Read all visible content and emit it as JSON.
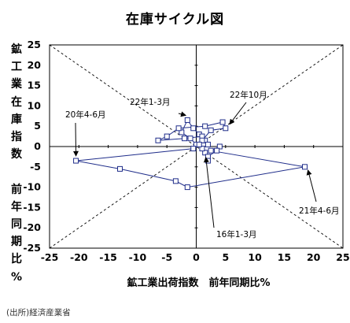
{
  "chart_data": {
    "type": "scatter",
    "title": "在庫サイクル図",
    "xlabel": "鉱工業出荷指数　前年同期比%",
    "ylabel": [
      "鉱",
      "工",
      "業",
      "在",
      "庫",
      "指",
      "数",
      "",
      "前",
      "年",
      "同",
      "期",
      "比",
      "%"
    ],
    "xlim": [
      -25,
      25
    ],
    "ylim": [
      -25,
      25
    ],
    "x_ticks": [
      "-25",
      "-20",
      "-15",
      "-10",
      "-5",
      "0",
      "5",
      "10",
      "15",
      "20",
      "25"
    ],
    "y_ticks": [
      "25",
      "20",
      "15",
      "10",
      "5",
      "0",
      "-5",
      "-10",
      "-15",
      "-20",
      "-25"
    ],
    "grid": false,
    "diagonals": true,
    "connected": true,
    "series_color": "#1f2d8a",
    "points": [
      {
        "x": 1.5,
        "y": -1.5
      },
      {
        "x": 1.0,
        "y": -0.5
      },
      {
        "x": 0.0,
        "y": 0.5
      },
      {
        "x": -1.0,
        "y": 2.0
      },
      {
        "x": -2.5,
        "y": 3.5
      },
      {
        "x": -1.5,
        "y": 6.5
      },
      {
        "x": -0.5,
        "y": 4.5
      },
      {
        "x": 0.5,
        "y": 3.0
      },
      {
        "x": 1.5,
        "y": 1.5
      },
      {
        "x": 2.0,
        "y": 0.5
      },
      {
        "x": 1.0,
        "y": 2.5
      },
      {
        "x": -2.0,
        "y": 2.0
      },
      {
        "x": -6.5,
        "y": 1.5
      },
      {
        "x": -5.0,
        "y": 2.5
      },
      {
        "x": -3.0,
        "y": 4.5
      },
      {
        "x": 1.5,
        "y": 5.0
      },
      {
        "x": 4.5,
        "y": 6.0
      },
      {
        "x": 5.0,
        "y": 4.5
      },
      {
        "x": 2.5,
        "y": 4.0
      },
      {
        "x": 1.0,
        "y": 1.5
      },
      {
        "x": 0.5,
        "y": 0.5
      },
      {
        "x": -0.5,
        "y": -0.5
      },
      {
        "x": -20.5,
        "y": -3.5
      },
      {
        "x": -13.0,
        "y": -5.5
      },
      {
        "x": -3.5,
        "y": -8.5
      },
      {
        "x": -1.5,
        "y": -10.0
      },
      {
        "x": 18.5,
        "y": -5.0
      },
      {
        "x": 2.5,
        "y": -1.0
      },
      {
        "x": 4.0,
        "y": 0.0
      },
      {
        "x": 3.5,
        "y": -1.0
      },
      {
        "x": 2.0,
        "y": -2.5
      },
      {
        "x": 2.0,
        "y": -3.5
      }
    ],
    "annotations": [
      {
        "text": "22年1-3月",
        "x": -1.5,
        "y": 6.5
      },
      {
        "text": "22年10月",
        "x": 5.0,
        "y": 4.5
      },
      {
        "text": "20年4-6月",
        "x": -20.5,
        "y": -3.5
      },
      {
        "text": "21年4-6月",
        "x": 18.5,
        "y": -5.0
      },
      {
        "text": "16年1-3月",
        "x": 1.5,
        "y": -1.5
      }
    ]
  },
  "footer": {
    "source": "(出所)経済産業省"
  }
}
